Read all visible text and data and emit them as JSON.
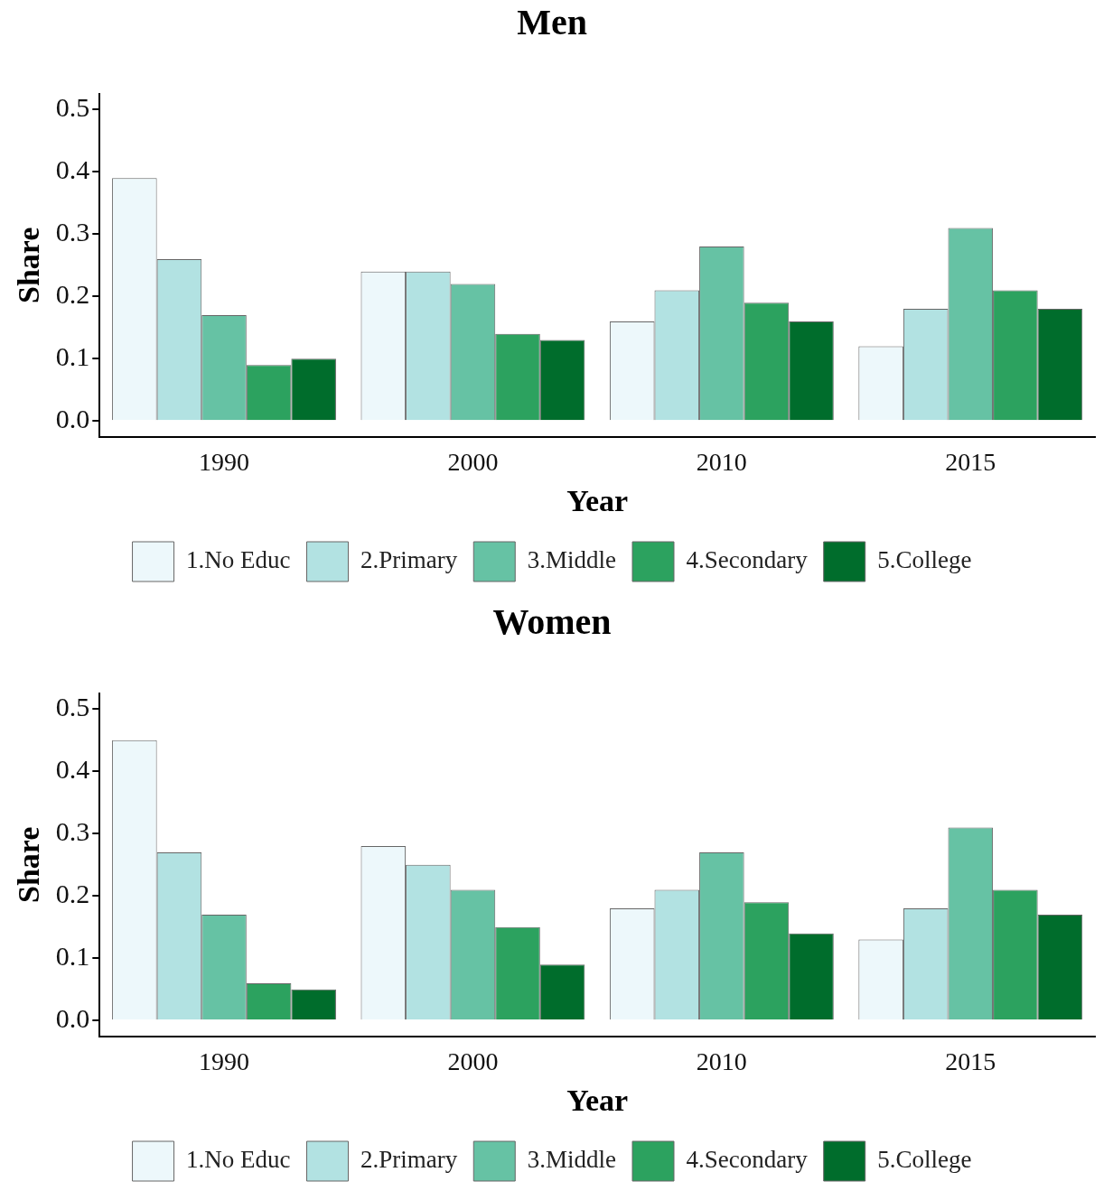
{
  "chart_data": [
    {
      "type": "bar",
      "title": "Men",
      "xlabel": "Year",
      "ylabel": "Share",
      "categories": [
        "1990",
        "2000",
        "2010",
        "2015"
      ],
      "ylim": [
        -0.025,
        0.525
      ],
      "yticks": [
        {
          "value": 0,
          "label": "0.0"
        },
        {
          "value": 0.1,
          "label": "0.1"
        },
        {
          "value": 0.2,
          "label": "0.2"
        },
        {
          "value": 0.3,
          "label": "0.3"
        },
        {
          "value": 0.4,
          "label": "0.4"
        },
        {
          "value": 0.5,
          "label": "0.5"
        }
      ],
      "grid": false,
      "legend": "bottom",
      "series": [
        {
          "name": "1.No Educ",
          "color": "#edf8fb",
          "values": [
            0.39,
            0.24,
            0.16,
            0.12
          ]
        },
        {
          "name": "2.Primary",
          "color": "#b2e2e2",
          "values": [
            0.26,
            0.24,
            0.21,
            0.18
          ]
        },
        {
          "name": "3.Middle",
          "color": "#66c2a4",
          "values": [
            0.17,
            0.22,
            0.28,
            0.31
          ]
        },
        {
          "name": "4.Secondary",
          "color": "#2ca25f",
          "values": [
            0.09,
            0.14,
            0.19,
            0.21
          ]
        },
        {
          "name": "5.College",
          "color": "#006d2c",
          "values": [
            0.1,
            0.13,
            0.16,
            0.18
          ]
        }
      ]
    },
    {
      "type": "bar",
      "title": "Women",
      "xlabel": "Year",
      "ylabel": "Share",
      "categories": [
        "1990",
        "2000",
        "2010",
        "2015"
      ],
      "ylim": [
        -0.025,
        0.525
      ],
      "yticks": [
        {
          "value": 0,
          "label": "0.0"
        },
        {
          "value": 0.1,
          "label": "0.1"
        },
        {
          "value": 0.2,
          "label": "0.2"
        },
        {
          "value": 0.3,
          "label": "0.3"
        },
        {
          "value": 0.4,
          "label": "0.4"
        },
        {
          "value": 0.5,
          "label": "0.5"
        }
      ],
      "grid": false,
      "legend": "bottom",
      "series": [
        {
          "name": "1.No Educ",
          "color": "#edf8fb",
          "values": [
            0.45,
            0.28,
            0.18,
            0.13
          ]
        },
        {
          "name": "2.Primary",
          "color": "#b2e2e2",
          "values": [
            0.27,
            0.25,
            0.21,
            0.18
          ]
        },
        {
          "name": "3.Middle",
          "color": "#66c2a4",
          "values": [
            0.17,
            0.21,
            0.27,
            0.31
          ]
        },
        {
          "name": "4.Secondary",
          "color": "#2ca25f",
          "values": [
            0.06,
            0.15,
            0.19,
            0.21
          ]
        },
        {
          "name": "5.College",
          "color": "#006d2c",
          "values": [
            0.05,
            0.09,
            0.14,
            0.17
          ]
        }
      ]
    }
  ]
}
